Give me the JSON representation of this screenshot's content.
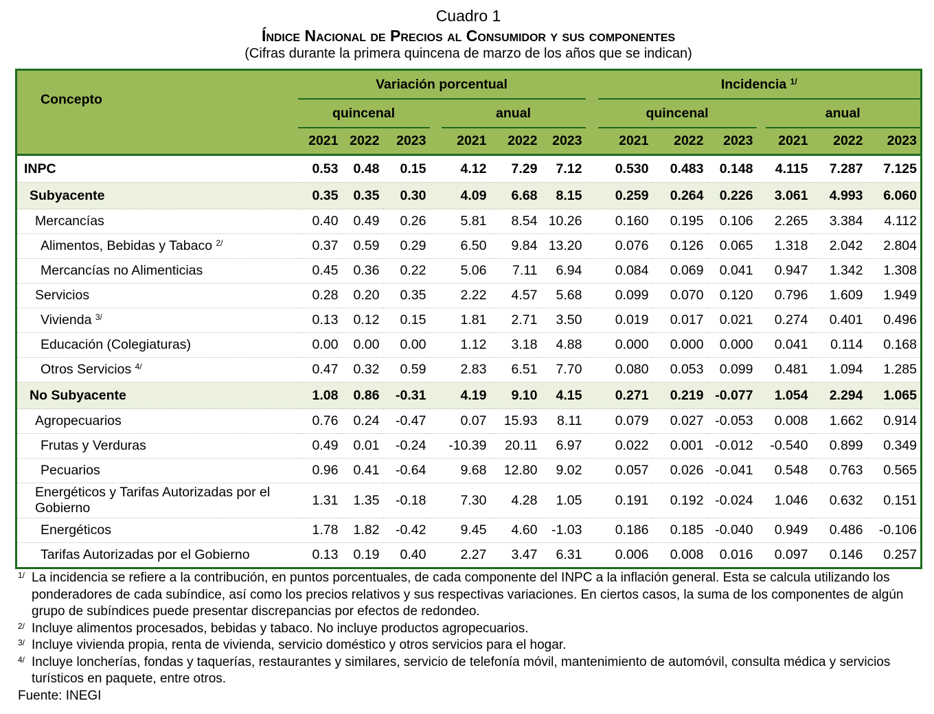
{
  "title": "Cuadro 1",
  "subtitle": "Índice Nacional de Precios al Consumidor y sus componentes",
  "caption": "(Cifras durante la primera quincena de marzo de los años que se indican)",
  "header": {
    "concept": "Concepto",
    "var": "Variación porcentual",
    "inc": "Incidencia",
    "inc_note": "1/",
    "quincenal": "quincenal",
    "anual": "anual",
    "years": [
      "2021",
      "2022",
      "2023"
    ]
  },
  "colors": {
    "header_bg": "#9bbb59",
    "border": "#1f6b1f",
    "shade": "#ebf1de"
  },
  "rows": [
    {
      "label": "INPC",
      "note": "",
      "v": [
        "0.53",
        "0.48",
        "0.15",
        "4.12",
        "7.29",
        "7.12",
        "0.530",
        "0.483",
        "0.148",
        "4.115",
        "7.287",
        "7.125"
      ]
    },
    {
      "label": "Subyacente",
      "note": "",
      "v": [
        "0.35",
        "0.35",
        "0.30",
        "4.09",
        "6.68",
        "8.15",
        "0.259",
        "0.264",
        "0.226",
        "3.061",
        "4.993",
        "6.060"
      ]
    },
    {
      "label": "Mercancías",
      "note": "",
      "v": [
        "0.40",
        "0.49",
        "0.26",
        "5.81",
        "8.54",
        "10.26",
        "0.160",
        "0.195",
        "0.106",
        "2.265",
        "3.384",
        "4.112"
      ]
    },
    {
      "label": "Alimentos, Bebidas y Tabaco",
      "note": "2/",
      "v": [
        "0.37",
        "0.59",
        "0.29",
        "6.50",
        "9.84",
        "13.20",
        "0.076",
        "0.126",
        "0.065",
        "1.318",
        "2.042",
        "2.804"
      ]
    },
    {
      "label": "Mercancías no Alimenticias",
      "note": "",
      "v": [
        "0.45",
        "0.36",
        "0.22",
        "5.06",
        "7.11",
        "6.94",
        "0.084",
        "0.069",
        "0.041",
        "0.947",
        "1.342",
        "1.308"
      ]
    },
    {
      "label": "Servicios",
      "note": "",
      "v": [
        "0.28",
        "0.20",
        "0.35",
        "2.22",
        "4.57",
        "5.68",
        "0.099",
        "0.070",
        "0.120",
        "0.796",
        "1.609",
        "1.949"
      ]
    },
    {
      "label": "Vivienda",
      "note": "3/",
      "v": [
        "0.13",
        "0.12",
        "0.15",
        "1.81",
        "2.71",
        "3.50",
        "0.019",
        "0.017",
        "0.021",
        "0.274",
        "0.401",
        "0.496"
      ]
    },
    {
      "label": "Educación (Colegiaturas)",
      "note": "",
      "v": [
        "0.00",
        "0.00",
        "0.00",
        "1.12",
        "3.18",
        "4.88",
        "0.000",
        "0.000",
        "0.000",
        "0.041",
        "0.114",
        "0.168"
      ]
    },
    {
      "label": "Otros Servicios",
      "note": "4/",
      "v": [
        "0.47",
        "0.32",
        "0.59",
        "2.83",
        "6.51",
        "7.70",
        "0.080",
        "0.053",
        "0.099",
        "0.481",
        "1.094",
        "1.285"
      ]
    },
    {
      "label": "No Subyacente",
      "note": "",
      "v": [
        "1.08",
        "0.86",
        "-0.31",
        "4.19",
        "9.10",
        "4.15",
        "0.271",
        "0.219",
        "-0.077",
        "1.054",
        "2.294",
        "1.065"
      ]
    },
    {
      "label": "Agropecuarios",
      "note": "",
      "v": [
        "0.76",
        "0.24",
        "-0.47",
        "0.07",
        "15.93",
        "8.11",
        "0.079",
        "0.027",
        "-0.053",
        "0.008",
        "1.662",
        "0.914"
      ]
    },
    {
      "label": "Frutas y Verduras",
      "note": "",
      "v": [
        "0.49",
        "0.01",
        "-0.24",
        "-10.39",
        "20.11",
        "6.97",
        "0.022",
        "0.001",
        "-0.012",
        "-0.540",
        "0.899",
        "0.349"
      ]
    },
    {
      "label": "Pecuarios",
      "note": "",
      "v": [
        "0.96",
        "0.41",
        "-0.64",
        "9.68",
        "12.80",
        "9.02",
        "0.057",
        "0.026",
        "-0.041",
        "0.548",
        "0.763",
        "0.565"
      ]
    },
    {
      "label": "Energéticos y Tarifas Autorizadas por el Gobierno",
      "note": "",
      "v": [
        "1.31",
        "1.35",
        "-0.18",
        "7.30",
        "4.28",
        "1.05",
        "0.191",
        "0.192",
        "-0.024",
        "1.046",
        "0.632",
        "0.151"
      ]
    },
    {
      "label": "Energéticos",
      "note": "",
      "v": [
        "1.78",
        "1.82",
        "-0.42",
        "9.45",
        "4.60",
        "-1.03",
        "0.186",
        "0.185",
        "-0.040",
        "0.949",
        "0.486",
        "-0.106"
      ]
    },
    {
      "label": "Tarifas Autorizadas por el Gobierno",
      "note": "",
      "v": [
        "0.13",
        "0.19",
        "0.40",
        "2.27",
        "3.47",
        "6.31",
        "0.006",
        "0.008",
        "0.016",
        "0.097",
        "0.146",
        "0.257"
      ]
    }
  ],
  "footnotes": [
    {
      "mark": "1/",
      "text": "La incidencia se refiere a la contribución, en puntos porcentuales, de cada componente del INPC a la inflación general. Esta se calcula utilizando los ponderadores de cada subíndice, así como los precios relativos y sus respectivas variaciones. En ciertos casos, la suma de los componentes de algún grupo de subíndices puede presentar discrepancias por efectos de redondeo."
    },
    {
      "mark": "2/",
      "text": "Incluye alimentos procesados, bebidas y tabaco. No incluye productos agropecuarios."
    },
    {
      "mark": "3/",
      "text": "Incluye vivienda propia, renta de vivienda, servicio doméstico y otros servicios para el hogar."
    },
    {
      "mark": "4/",
      "text": "Incluye loncherías, fondas y taquerías, restaurantes y similares, servicio de telefonía móvil, mantenimiento de automóvil, consulta médica y servicios turísticos en paquete, entre otros."
    }
  ],
  "source": "Fuente: INEGI"
}
